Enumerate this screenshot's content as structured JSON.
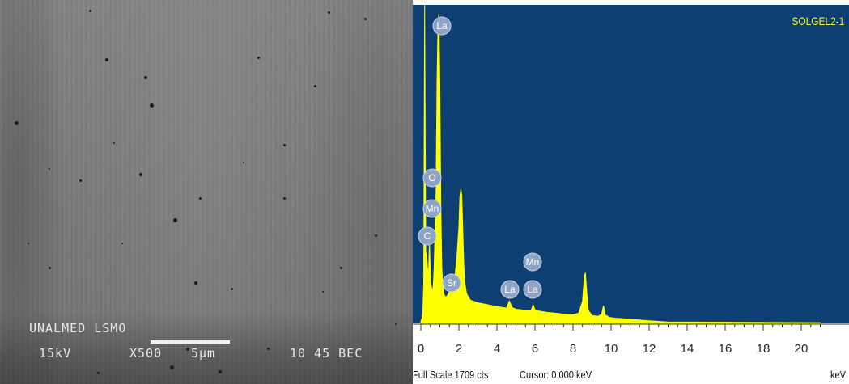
{
  "sem": {
    "line1": "UNALMED LSMO",
    "voltage": "15kV",
    "magnification": "X500",
    "scale": "5μm",
    "id_label": "10 45 BEC"
  },
  "chart_data": {
    "type": "line",
    "title": "SOLGEL2-1",
    "xlabel": "keV",
    "ylabel": "",
    "xlim": [
      0,
      21
    ],
    "ylim": [
      0,
      1709
    ],
    "x_ticks": [
      0,
      2,
      4,
      6,
      8,
      10,
      12,
      14,
      16,
      18,
      20
    ],
    "background_color": "#0d3f73",
    "trace_color": "#ffff00",
    "full_scale": "Full Scale 1709 cts",
    "cursor": "Cursor: 0.000 keV",
    "series": [
      {
        "x": [
          0.0,
          0.1,
          0.15,
          0.2,
          0.26,
          0.3,
          0.35,
          0.4,
          0.45,
          0.52,
          0.6,
          0.65,
          0.7,
          0.8,
          0.85,
          0.9,
          0.95,
          1.0,
          1.05,
          1.1,
          1.15,
          1.2,
          1.3,
          1.4,
          1.5,
          1.6,
          1.7,
          1.8,
          1.9,
          2.0,
          2.05,
          2.1,
          2.15,
          2.2,
          2.25,
          2.3,
          2.4,
          2.6,
          3.0,
          3.5,
          4.0,
          4.5,
          4.65,
          4.8,
          5.0,
          5.5,
          5.8,
          5.9,
          6.0,
          6.2,
          6.6,
          7.0,
          7.5,
          8.0,
          8.3,
          8.5,
          8.6,
          8.65,
          8.7,
          8.8,
          9.0,
          9.3,
          9.5,
          9.6,
          9.7,
          9.9,
          10.2,
          11.0,
          12.0,
          13.0,
          21.0
        ],
        "y": [
          10,
          40,
          200,
          1708,
          330,
          380,
          300,
          260,
          430,
          220,
          170,
          200,
          300,
          700,
          1300,
          1600,
          1660,
          1280,
          620,
          300,
          210,
          160,
          140,
          150,
          170,
          180,
          200,
          260,
          360,
          520,
          680,
          720,
          690,
          520,
          330,
          230,
          160,
          125,
          110,
          100,
          90,
          82,
          120,
          85,
          76,
          70,
          70,
          100,
          72,
          66,
          60,
          55,
          50,
          46,
          55,
          120,
          260,
          270,
          200,
          70,
          42,
          38,
          48,
          95,
          45,
          32,
          28,
          22,
          14,
          8,
          4
        ]
      }
    ],
    "annotations": [
      {
        "text": "La",
        "x": 1.1
      },
      {
        "text": "O",
        "x": 0.55
      },
      {
        "text": "Mn",
        "x": 0.55
      },
      {
        "text": "C",
        "x": 0.4
      },
      {
        "text": "Sr",
        "x": 1.65
      },
      {
        "text": "La",
        "x": 4.65
      },
      {
        "text": "La",
        "x": 5.85
      },
      {
        "text": "Mn",
        "x": 5.9
      }
    ]
  }
}
